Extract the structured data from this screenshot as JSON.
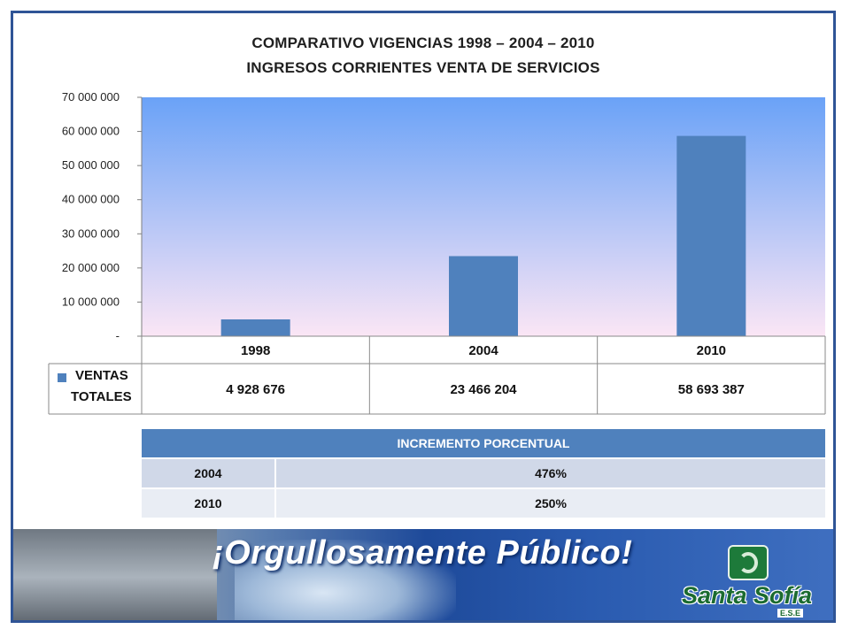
{
  "slide": {
    "title_line1": "COMPARATIVO  VIGENCIAS 1998 – 2004 – 2010",
    "title_line2": "INGRESOS CORRIENTES VENTA DE SERVICIOS"
  },
  "chart_data": {
    "type": "bar",
    "categories": [
      "1998",
      "2004",
      "2010"
    ],
    "series": [
      {
        "name": "VENTAS TOTALES",
        "values": [
          4928676,
          23466204,
          58693387
        ],
        "display": [
          "4 928 676",
          "23 466 204",
          "58 693 387"
        ]
      }
    ],
    "legend_lines": [
      "VENTAS",
      "TOTALES"
    ],
    "ylim": [
      0,
      70000000
    ],
    "yticks": [
      0,
      10000000,
      20000000,
      30000000,
      40000000,
      50000000,
      60000000,
      70000000
    ],
    "ytick_labels": [
      "-",
      "10 000 000",
      "20 000 000",
      "30 000 000",
      "40 000 000",
      "50 000 000",
      "60 000 000",
      "70 000 000"
    ],
    "grid": false,
    "data_table": true,
    "colors": {
      "bar": "#4f81bd",
      "plot_top": "#6aa2f7",
      "plot_bottom": "#fbe6f5"
    }
  },
  "increment_table": {
    "header": "INCREMENTO  PORCENTUAL",
    "rows": [
      {
        "year": "2004",
        "value": "476%"
      },
      {
        "year": "2010",
        "value": "250%"
      }
    ]
  },
  "banner": {
    "slogan": "¡Orgullosamente Público!",
    "logo_name": "Santa Sofía",
    "logo_sub": "E.S.E"
  }
}
